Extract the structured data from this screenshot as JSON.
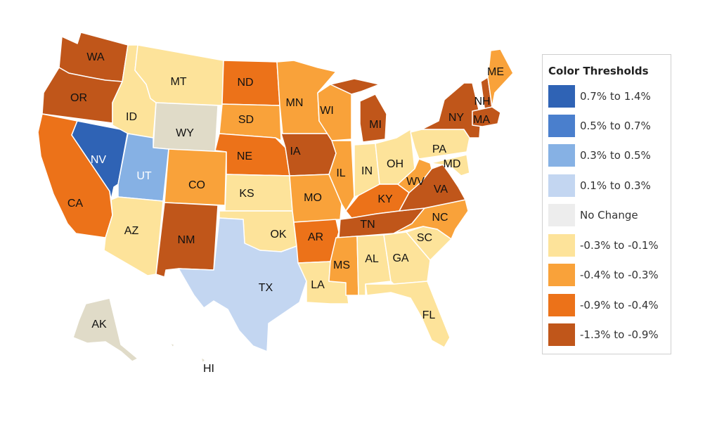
{
  "legend": {
    "title": "Color Thresholds",
    "items": [
      {
        "key": "b4",
        "label": "0.7% to 1.4%",
        "color": "#2f63b5"
      },
      {
        "key": "b3",
        "label": "0.5% to 0.7%",
        "color": "#4a7fcd"
      },
      {
        "key": "b2",
        "label": "0.3% to 0.5%",
        "color": "#86b1e4"
      },
      {
        "key": "b1",
        "label": "0.1% to 0.3%",
        "color": "#c3d6f1"
      },
      {
        "key": "nc",
        "label": "No Change",
        "color": "#ededed"
      },
      {
        "key": "o1",
        "label": "-0.3% to -0.1%",
        "color": "#fde39a"
      },
      {
        "key": "o2",
        "label": "-0.4% to -0.3%",
        "color": "#f9a23a"
      },
      {
        "key": "o3",
        "label": "-0.9% to -0.4%",
        "color": "#ec7219"
      },
      {
        "key": "o4",
        "label": "-1.3% to -0.9%",
        "color": "#c0561a"
      }
    ]
  },
  "no_data_color": "#e0dbc8",
  "states": [
    {
      "abbr": "WA",
      "cat": "o4"
    },
    {
      "abbr": "OR",
      "cat": "o4"
    },
    {
      "abbr": "CA",
      "cat": "o3"
    },
    {
      "abbr": "NV",
      "cat": "b4"
    },
    {
      "abbr": "ID",
      "cat": "o1"
    },
    {
      "abbr": "MT",
      "cat": "o1"
    },
    {
      "abbr": "WY",
      "cat": "nd"
    },
    {
      "abbr": "UT",
      "cat": "b2"
    },
    {
      "abbr": "AZ",
      "cat": "o1"
    },
    {
      "abbr": "CO",
      "cat": "o2"
    },
    {
      "abbr": "NM",
      "cat": "o4"
    },
    {
      "abbr": "ND",
      "cat": "o3"
    },
    {
      "abbr": "SD",
      "cat": "o2"
    },
    {
      "abbr": "NE",
      "cat": "o3"
    },
    {
      "abbr": "KS",
      "cat": "o1"
    },
    {
      "abbr": "OK",
      "cat": "o1"
    },
    {
      "abbr": "TX",
      "cat": "b1"
    },
    {
      "abbr": "MN",
      "cat": "o2"
    },
    {
      "abbr": "IA",
      "cat": "o4"
    },
    {
      "abbr": "MO",
      "cat": "o2"
    },
    {
      "abbr": "AR",
      "cat": "o3"
    },
    {
      "abbr": "LA",
      "cat": "o1"
    },
    {
      "abbr": "WI",
      "cat": "o2"
    },
    {
      "abbr": "IL",
      "cat": "o2"
    },
    {
      "abbr": "MI",
      "cat": "o4"
    },
    {
      "abbr": "IN",
      "cat": "o1"
    },
    {
      "abbr": "OH",
      "cat": "o1"
    },
    {
      "abbr": "KY",
      "cat": "o3"
    },
    {
      "abbr": "TN",
      "cat": "o4"
    },
    {
      "abbr": "MS",
      "cat": "o2"
    },
    {
      "abbr": "AL",
      "cat": "o1"
    },
    {
      "abbr": "GA",
      "cat": "o1"
    },
    {
      "abbr": "FL",
      "cat": "o1"
    },
    {
      "abbr": "SC",
      "cat": "o1"
    },
    {
      "abbr": "NC",
      "cat": "o2"
    },
    {
      "abbr": "VA",
      "cat": "o4"
    },
    {
      "abbr": "WV",
      "cat": "o2"
    },
    {
      "abbr": "PA",
      "cat": "o1"
    },
    {
      "abbr": "MD",
      "cat": "o1"
    },
    {
      "abbr": "NY",
      "cat": "o4"
    },
    {
      "abbr": "NH",
      "cat": "o4"
    },
    {
      "abbr": "MA",
      "cat": "o4"
    },
    {
      "abbr": "ME",
      "cat": "o2"
    },
    {
      "abbr": "AK",
      "cat": "nd"
    },
    {
      "abbr": "HI",
      "cat": "nd"
    }
  ]
}
